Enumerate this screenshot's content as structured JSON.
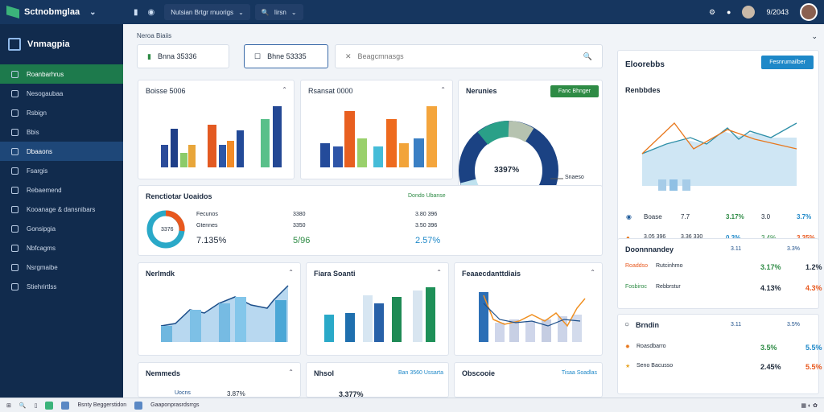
{
  "app": {
    "title": "Sctnobmglaa",
    "menu2": "Nutsian Brtgr rnuorigs",
    "menu3": "Iirsn",
    "time": "9/2043",
    "bell": "●"
  },
  "sidebar": {
    "title": "Vnmagpia",
    "items": [
      {
        "label": "Roanbarhrus"
      },
      {
        "label": "Nesogaubaa"
      },
      {
        "label": "Rsbign"
      },
      {
        "label": "Bbis"
      },
      {
        "label": "Dbaaons"
      },
      {
        "label": "Fsargis"
      },
      {
        "label": "Rebaemend"
      },
      {
        "label": "Kooanage & dansnibars"
      },
      {
        "label": "Gonsipgia"
      },
      {
        "label": "Nbfcagms"
      },
      {
        "label": "Nsrgmaibe"
      },
      {
        "label": "Stiehrirtlss"
      }
    ]
  },
  "main": {
    "breadcrumb": "Neroa Biaiis",
    "filters": [
      "Bnna 35336",
      "Bhne 53335"
    ],
    "search_placeholder": "Beagcmnasgs",
    "card1": {
      "title": "Boisse 5006"
    },
    "card2": {
      "title": "Rsansat 0000"
    },
    "donut_card": {
      "title": "Nerunies",
      "button": "Fanc Bhnger",
      "center": "3397%",
      "label": "Snaeso"
    },
    "summary": {
      "title": "Renctiotar Uoaidos",
      "link": "Dondo Ubanse",
      "donut": "3376",
      "rows": [
        [
          "Fecunos",
          "3380",
          "3.80 396"
        ],
        [
          "Gtennes",
          "3350",
          "3.50 396"
        ]
      ],
      "totals": [
        "7.135%",
        "5/96",
        "2.57%"
      ]
    },
    "r2": [
      {
        "title": "Nerlmdk"
      },
      {
        "title": "Fiara Soanti"
      },
      {
        "title": "Feaaecdanttdiais"
      }
    ],
    "r3": [
      {
        "title": "Nemmeds"
      },
      {
        "title": "Nhsol",
        "link": "Ban 3560 Ussarta",
        "v1": "3.377%"
      },
      {
        "title": "Obscooie",
        "link": "Tisaa Soadlas"
      }
    ],
    "r3_footer": {
      "label": "Uocns",
      "value": "3.87%"
    }
  },
  "right": {
    "title": "Eloorebbs",
    "button": "Fesnrumailber",
    "chart_title": "Renbbdes",
    "rows": [
      {
        "name": "Boase",
        "v1": "7.7",
        "v2": "3.17%",
        "v3": "3.0",
        "v4": "3.7%"
      },
      {
        "name": "3.05 396",
        "v1": "3.36 330",
        "v2": "0.3%",
        "v3": "3.4%",
        "v4": "3.35%"
      }
    ],
    "card2": {
      "title": "Doonnnandey",
      "h1": "3.11",
      "h2": "3.3%",
      "rows": [
        [
          "Roaddso",
          "Rutcinhmo",
          "3.17%",
          "1.2%"
        ],
        [
          "Fosbiroc",
          "Rebbrstur",
          "4.13%",
          "4.3%"
        ]
      ]
    },
    "card3": {
      "title": "Brndin",
      "h1": "3.11",
      "h2": "3.5%",
      "rows": [
        [
          "Roasdbarro",
          "",
          "3.5%",
          "5.5%"
        ],
        [
          "Seno Bacusso",
          "",
          "2.45%",
          "5.5%"
        ]
      ]
    }
  },
  "taskbar": {
    "items": [
      "Bsnty Beggerstidon",
      "Gaaponprasrdsrrgs"
    ]
  }
}
